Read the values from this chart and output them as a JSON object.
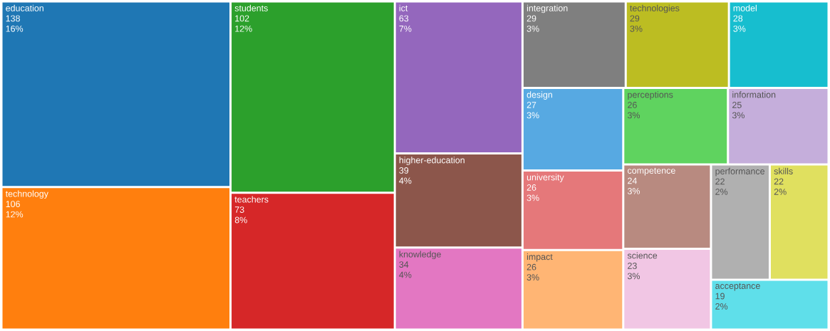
{
  "chart_data": {
    "type": "other",
    "categories": [
      "education",
      "technology",
      "students",
      "teachers",
      "ict",
      "higher-education",
      "knowledge",
      "integration",
      "technologies",
      "model",
      "design",
      "university",
      "impact",
      "perceptions",
      "information",
      "competence",
      "science",
      "performance",
      "skills",
      "acceptance"
    ],
    "values": [
      138,
      106,
      102,
      73,
      63,
      39,
      34,
      29,
      29,
      28,
      27,
      26,
      26,
      26,
      25,
      24,
      23,
      22,
      22,
      19
    ],
    "value_labels": [
      "138",
      "106",
      "102",
      "73",
      "63",
      "39",
      "34",
      "29",
      "29",
      "28",
      "27",
      "26",
      "26",
      "26",
      "25",
      "24",
      "23",
      "22",
      "22",
      "19"
    ],
    "annotations": [
      {
        "text": "16%",
        "x": "education"
      },
      {
        "text": "12%",
        "x": "technology"
      },
      {
        "text": "12%",
        "x": "students"
      },
      {
        "text": "8%",
        "x": "teachers"
      },
      {
        "text": "7%",
        "x": "ict"
      },
      {
        "text": "4%",
        "x": "higher-education"
      },
      {
        "text": "4%",
        "x": "knowledge"
      },
      {
        "text": "3%",
        "x": "integration"
      },
      {
        "text": "3%",
        "x": "technologies"
      },
      {
        "text": "3%",
        "x": "model"
      },
      {
        "text": "3%",
        "x": "design"
      },
      {
        "text": "3%",
        "x": "university"
      },
      {
        "text": "3%",
        "x": "impact"
      },
      {
        "text": "3%",
        "x": "perceptions"
      },
      {
        "text": "3%",
        "x": "information"
      },
      {
        "text": "3%",
        "x": "competence"
      },
      {
        "text": "3%",
        "x": "science"
      },
      {
        "text": "2%",
        "x": "performance"
      },
      {
        "text": "2%",
        "x": "skills"
      },
      {
        "text": "2%",
        "x": "acceptance"
      }
    ],
    "colors": [
      "#1f77b4",
      "#ff7f0e",
      "#2ca02c",
      "#d62728",
      "#9467bd",
      "#8c564b",
      "#e377c2",
      "#7f7f7f",
      "#bcbd22",
      "#17becf",
      "#57a9e2",
      "#e5787a",
      "#ffb574",
      "#5fd35f",
      "#c5aedb",
      "#b88a80",
      "#f1c6e4",
      "#b0b0b0",
      "#e0e05f",
      "#5fdfea"
    ]
  }
}
